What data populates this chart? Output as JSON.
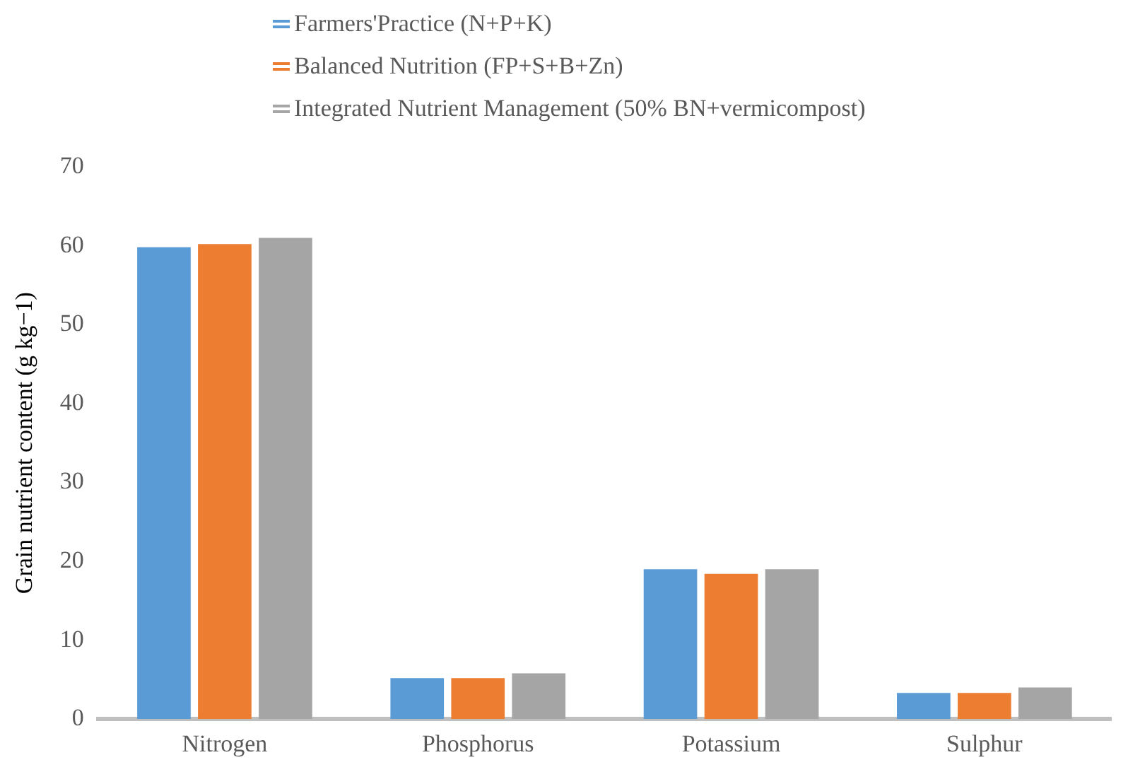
{
  "chart_data": {
    "type": "bar",
    "ylabel": "Grain nutrient content (g kg−1)",
    "categories": [
      "Nitrogen",
      "Phosphorus",
      "Potassium",
      "Sulphur"
    ],
    "series": [
      {
        "name": "Farmers'Practice (N+P+K)",
        "color": "#5b9bd5",
        "values": [
          59.8,
          5.2,
          19.0,
          3.3
        ]
      },
      {
        "name": "Balanced Nutrition (FP+S+B+Zn)",
        "color": "#ed7d31",
        "values": [
          60.2,
          5.2,
          18.4,
          3.3
        ]
      },
      {
        "name": "Integrated Nutrient Management (50% BN+vermicompost)",
        "color": "#a5a5a5",
        "values": [
          61.0,
          5.8,
          19.0,
          4.0
        ]
      }
    ],
    "ylim": [
      0,
      70
    ],
    "yticks": [
      0,
      10,
      20,
      30,
      40,
      50,
      60,
      70
    ],
    "grid": false,
    "legend": "top"
  }
}
